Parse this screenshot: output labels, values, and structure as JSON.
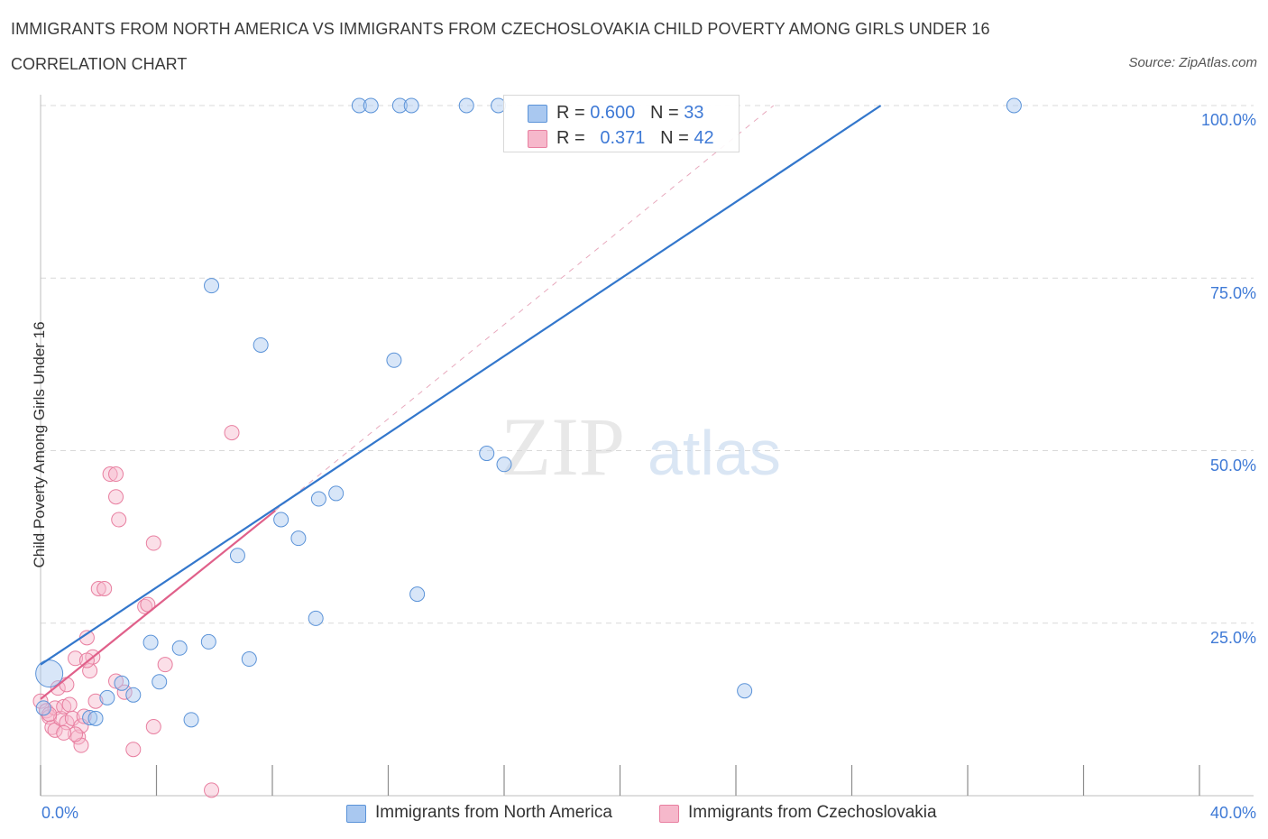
{
  "title": "IMMIGRANTS FROM NORTH AMERICA VS IMMIGRANTS FROM CZECHOSLOVAKIA CHILD POVERTY AMONG GIRLS UNDER 16",
  "subtitle": "CORRELATION CHART",
  "source": "Source: ZipAtlas.com",
  "watermark": {
    "zip": "ZIP",
    "atlas": "atlas"
  },
  "legend": {
    "rows": [
      {
        "r_label": "R = ",
        "r_value": "0.600",
        "n_label": "N = ",
        "n_value": "33"
      },
      {
        "r_label": "R = ",
        "r_value": "0.371",
        "n_label": "N = ",
        "n_value": "42"
      }
    ]
  },
  "colors": {
    "blue_fill": "#a9c8f0",
    "blue_stroke": "#5b93d8",
    "blue_line": "#3377cc",
    "pink_fill": "#f6b8cb",
    "pink_stroke": "#e87fa0",
    "pink_line": "#e0608a",
    "axis_label": "#3f7ad6",
    "grid": "#d9d9d9"
  },
  "chart_data": {
    "type": "scatter",
    "title": "IMMIGRANTS FROM NORTH AMERICA VS IMMIGRANTS FROM CZECHOSLOVAKIA CHILD POVERTY AMONG GIRLS UNDER 16",
    "xlabel": "",
    "ylabel": "Child Poverty Among Girls Under 16",
    "xlim": [
      0,
      40
    ],
    "ylim": [
      0,
      100
    ],
    "x_tick_labels": [
      "0.0%",
      "40.0%"
    ],
    "y_ticks": [
      25,
      50,
      75,
      100
    ],
    "y_tick_labels": [
      "25.0%",
      "50.0%",
      "75.0%",
      "100.0%"
    ],
    "grid": true,
    "legend_position": "top-center",
    "series": [
      {
        "name": "Immigrants from North America",
        "color": "#a9c8f0",
        "points": [
          [
            0.3,
            17.7
          ],
          [
            0.1,
            12.7
          ],
          [
            1.7,
            11.3
          ],
          [
            1.9,
            11.2
          ],
          [
            2.3,
            14.2
          ],
          [
            2.8,
            16.3
          ],
          [
            3.2,
            14.6
          ],
          [
            3.8,
            22.2
          ],
          [
            4.1,
            16.5
          ],
          [
            4.8,
            21.4
          ],
          [
            5.2,
            11.0
          ],
          [
            5.8,
            22.3
          ],
          [
            5.9,
            73.9
          ],
          [
            6.8,
            34.8
          ],
          [
            7.2,
            19.8
          ],
          [
            7.6,
            65.3
          ],
          [
            8.3,
            40.0
          ],
          [
            8.9,
            37.3
          ],
          [
            9.5,
            25.7
          ],
          [
            9.6,
            43.0
          ],
          [
            10.2,
            43.8
          ],
          [
            11.0,
            100
          ],
          [
            11.4,
            100
          ],
          [
            13.0,
            29.2
          ],
          [
            12.4,
            100
          ],
          [
            12.8,
            100
          ],
          [
            14.7,
            100
          ],
          [
            15.4,
            49.6
          ],
          [
            15.8,
            100
          ],
          [
            16.0,
            48.0
          ],
          [
            24.3,
            15.2
          ],
          [
            33.6,
            100
          ],
          [
            12.2,
            63.1
          ]
        ],
        "trend": {
          "x": [
            0,
            29
          ],
          "y": [
            19,
            100
          ]
        }
      },
      {
        "name": "Immigrants from Czechoslovakia",
        "color": "#f6b8cb",
        "points": [
          [
            0.0,
            13.7
          ],
          [
            0.2,
            12.3
          ],
          [
            0.3,
            11.4
          ],
          [
            0.4,
            9.9
          ],
          [
            0.5,
            9.5
          ],
          [
            0.5,
            12.7
          ],
          [
            0.6,
            15.6
          ],
          [
            0.7,
            11.2
          ],
          [
            0.8,
            12.9
          ],
          [
            0.9,
            10.6
          ],
          [
            0.9,
            16.1
          ],
          [
            1.0,
            13.2
          ],
          [
            1.1,
            11.2
          ],
          [
            1.2,
            19.9
          ],
          [
            1.3,
            8.5
          ],
          [
            1.4,
            7.3
          ],
          [
            1.4,
            10.1
          ],
          [
            1.5,
            11.5
          ],
          [
            1.6,
            22.9
          ],
          [
            1.7,
            18.1
          ],
          [
            1.8,
            20.1
          ],
          [
            1.9,
            13.7
          ],
          [
            2.0,
            30.0
          ],
          [
            2.2,
            30.0
          ],
          [
            1.6,
            19.6
          ],
          [
            2.6,
            43.3
          ],
          [
            2.6,
            16.6
          ],
          [
            2.9,
            15.0
          ],
          [
            3.2,
            6.7
          ],
          [
            3.6,
            27.4
          ],
          [
            3.7,
            27.7
          ],
          [
            3.9,
            36.6
          ],
          [
            3.9,
            10.0
          ],
          [
            4.3,
            19.0
          ],
          [
            5.9,
            0.8
          ],
          [
            6.6,
            52.6
          ],
          [
            2.4,
            46.6
          ],
          [
            2.6,
            46.6
          ],
          [
            1.2,
            8.9
          ],
          [
            0.8,
            9.1
          ],
          [
            2.7,
            40.0
          ],
          [
            0.3,
            11.8
          ]
        ],
        "trend": {
          "x": [
            0,
            8.1
          ],
          "y": [
            14,
            41.3
          ]
        }
      }
    ]
  },
  "bottom_legend": {
    "blue_label": "Immigrants from North America",
    "pink_label": "Immigrants from Czechoslovakia"
  }
}
